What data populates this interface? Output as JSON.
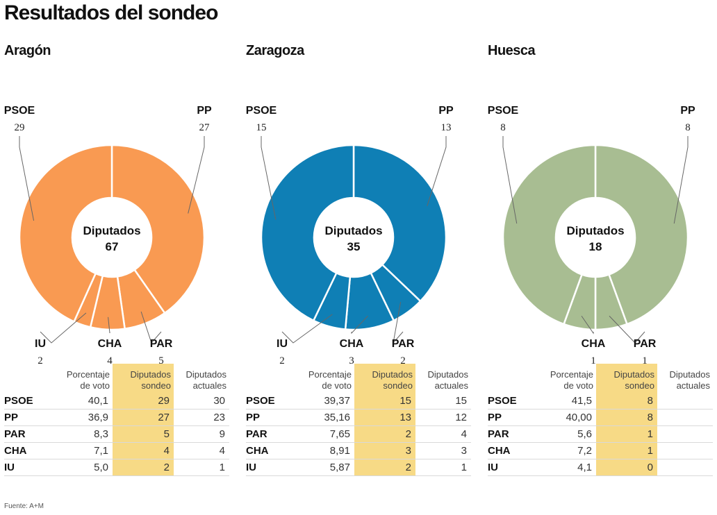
{
  "title": "Resultados del sondeo",
  "table_headers": {
    "voto": "Porcentaje\nde voto",
    "sondeo": "Diputados\nsondeo",
    "actual": "Diputados\nactuales"
  },
  "center_label": "Diputados",
  "source": "Fuente: A+M",
  "colors": {
    "aragon": "#f99a52",
    "zaragoza": "#0f7fb5",
    "huesca": "#a8bd92",
    "highlight": "#f7da86"
  },
  "chart_data": [
    {
      "type": "pie",
      "title": "Aragón",
      "total": "67",
      "slices": [
        {
          "party": "PSOE",
          "seats": 29
        },
        {
          "party": "PP",
          "seats": 27
        },
        {
          "party": "PAR",
          "seats": 5
        },
        {
          "party": "CHA",
          "seats": 4
        },
        {
          "party": "IU",
          "seats": 2
        }
      ],
      "table": [
        {
          "party": "PSOE",
          "voto": "40,1",
          "sondeo": "29",
          "actual": "30"
        },
        {
          "party": "PP",
          "voto": "36,9",
          "sondeo": "27",
          "actual": "23"
        },
        {
          "party": "PAR",
          "voto": "8,3",
          "sondeo": "5",
          "actual": "9"
        },
        {
          "party": "CHA",
          "voto": "7,1",
          "sondeo": "4",
          "actual": "4"
        },
        {
          "party": "IU",
          "voto": "5,0",
          "sondeo": "2",
          "actual": "1"
        }
      ]
    },
    {
      "type": "pie",
      "title": "Zaragoza",
      "total": "35",
      "slices": [
        {
          "party": "PSOE",
          "seats": 15
        },
        {
          "party": "PP",
          "seats": 13
        },
        {
          "party": "PAR",
          "seats": 2
        },
        {
          "party": "CHA",
          "seats": 3
        },
        {
          "party": "IU",
          "seats": 2
        }
      ],
      "table": [
        {
          "party": "PSOE",
          "voto": "39,37",
          "sondeo": "15",
          "actual": "15"
        },
        {
          "party": "PP",
          "voto": "35,16",
          "sondeo": "13",
          "actual": "12"
        },
        {
          "party": "PAR",
          "voto": "7,65",
          "sondeo": "2",
          "actual": "4"
        },
        {
          "party": "CHA",
          "voto": "8,91",
          "sondeo": "3",
          "actual": "3"
        },
        {
          "party": "IU",
          "voto": "5,87",
          "sondeo": "2",
          "actual": "1"
        }
      ]
    },
    {
      "type": "pie",
      "title": "Huesca",
      "total": "18",
      "slices": [
        {
          "party": "PSOE",
          "seats": 8
        },
        {
          "party": "PP",
          "seats": 8
        },
        {
          "party": "PAR",
          "seats": 1
        },
        {
          "party": "CHA",
          "seats": 1
        },
        {
          "party": "IU",
          "seats": 0
        }
      ],
      "table": [
        {
          "party": "PSOE",
          "voto": "41,5",
          "sondeo": "8",
          "actual": ""
        },
        {
          "party": "PP",
          "voto": "40,00",
          "sondeo": "8",
          "actual": ""
        },
        {
          "party": "PAR",
          "voto": "5,6",
          "sondeo": "1",
          "actual": ""
        },
        {
          "party": "CHA",
          "voto": "7,2",
          "sondeo": "1",
          "actual": ""
        },
        {
          "party": "IU",
          "voto": "4,1",
          "sondeo": "0",
          "actual": ""
        }
      ]
    }
  ]
}
